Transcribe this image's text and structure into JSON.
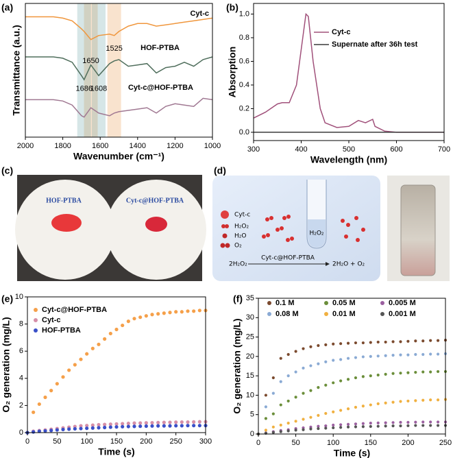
{
  "chart_data": [
    {
      "type": "line",
      "panel": "(a)",
      "xlabel": "Wavenumber (cm⁻¹)",
      "ylabel": "Transmittance (a.u.)",
      "x": [
        2000,
        1950,
        1900,
        1850,
        1800,
        1750,
        1700,
        1686,
        1650,
        1608,
        1550,
        1525,
        1500,
        1450,
        1400,
        1350,
        1300,
        1250,
        1200,
        1150,
        1100,
        1050,
        1000
      ],
      "xlim": [
        2000,
        1000
      ],
      "xticks": [
        2000,
        1800,
        1600,
        1400,
        1200,
        1000
      ],
      "ylim": [
        0,
        10
      ],
      "series": [
        {
          "name": "Cyt-c",
          "color": "#f0963c",
          "values": [
            9.0,
            9.0,
            9.0,
            9.0,
            8.9,
            8.7,
            8.1,
            7.9,
            7.3,
            7.6,
            7.7,
            7.6,
            7.9,
            8.3,
            8.5,
            8.5,
            8.3,
            8.4,
            8.5,
            8.6,
            8.7,
            8.8,
            8.9
          ]
        },
        {
          "name": "HOF-PTBA",
          "color": "#4f6e5c",
          "values": [
            6.0,
            6.0,
            6.0,
            6.0,
            5.9,
            5.6,
            4.6,
            4.3,
            5.4,
            4.6,
            5.5,
            5.7,
            5.8,
            5.3,
            5.4,
            5.5,
            4.8,
            5.2,
            5.3,
            5.6,
            5.3,
            5.8,
            6.0
          ]
        },
        {
          "name": "Cyt-c@HOF-PTBA",
          "color": "#a07892",
          "values": [
            2.8,
            2.8,
            2.8,
            2.8,
            2.7,
            2.4,
            1.6,
            1.5,
            2.2,
            1.8,
            1.6,
            1.8,
            1.9,
            2.0,
            2.1,
            2.2,
            1.8,
            2.3,
            2.5,
            2.4,
            2.3,
            2.9,
            2.8
          ]
        }
      ],
      "annotations": [
        {
          "text": "1650",
          "x": 1650,
          "y": 5.7,
          "color": "#e8903a"
        },
        {
          "text": "1525",
          "x": 1525,
          "y": 6.6,
          "color": "#e8903a"
        },
        {
          "text": "1686",
          "x": 1686,
          "y": 3.6,
          "color": "#5a9aa0"
        },
        {
          "text": "1608",
          "x": 1608,
          "y": 3.6,
          "color": "#5a9aa0"
        }
      ]
    },
    {
      "type": "line",
      "panel": "(b)",
      "xlabel": "Wavelength (nm)",
      "ylabel": "Absorption",
      "x": [
        300,
        325,
        350,
        360,
        375,
        390,
        400,
        410,
        415,
        425,
        440,
        450,
        475,
        500,
        520,
        535,
        550,
        555,
        575,
        600,
        650,
        700
      ],
      "xlim": [
        300,
        700
      ],
      "xticks": [
        300,
        400,
        500,
        600,
        700
      ],
      "ylim": [
        -0.07,
        1.09
      ],
      "yticks": [
        {
          "value": 0,
          "label": "0.0"
        },
        0.2,
        0.4,
        0.6,
        0.8,
        {
          "value": 1,
          "label": "1.0"
        }
      ],
      "series": [
        {
          "name": "Cyt-c",
          "color": "#a0507a",
          "values": [
            0.12,
            0.17,
            0.24,
            0.25,
            0.25,
            0.4,
            0.7,
            1.0,
            0.98,
            0.6,
            0.2,
            0.08,
            0.04,
            0.05,
            0.1,
            0.08,
            0.11,
            0.05,
            0.01,
            0,
            0,
            0
          ]
        },
        {
          "name": "Supernate after 36h test",
          "color": "#3a3a3a",
          "values": [
            0,
            0,
            0,
            0,
            0,
            0,
            0,
            0,
            0,
            0,
            0,
            0,
            0,
            0,
            0,
            0,
            0,
            0,
            0,
            0,
            0,
            0
          ]
        }
      ]
    },
    {
      "type": "scatter",
      "panel": "(e)",
      "xlabel": "Time (s)",
      "ylabel": "O₂ generation (mg/L)",
      "x": [
        0,
        10,
        20,
        30,
        40,
        50,
        60,
        70,
        80,
        90,
        100,
        110,
        120,
        130,
        140,
        150,
        160,
        170,
        180,
        190,
        200,
        210,
        220,
        230,
        240,
        250,
        260,
        270,
        280,
        290,
        300
      ],
      "xlim": [
        0,
        300
      ],
      "xticks": [
        0,
        50,
        100,
        150,
        200,
        250,
        300
      ],
      "ylim": [
        0,
        10
      ],
      "yticks": [
        0,
        2,
        4,
        6,
        8,
        10
      ],
      "series": [
        {
          "name": "Cyt-c@HOF-PTBA",
          "color": "#f5a04a",
          "values": [
            0,
            1.5,
            2.1,
            2.6,
            3.1,
            3.6,
            4.1,
            4.6,
            5.0,
            5.4,
            5.8,
            6.2,
            6.5,
            6.9,
            7.3,
            7.6,
            7.9,
            8.2,
            8.4,
            8.5,
            8.6,
            8.7,
            8.75,
            8.8,
            8.85,
            8.9,
            8.9,
            8.95,
            8.95,
            9.0,
            9.0
          ]
        },
        {
          "name": "Cyt-c",
          "color": "#d68fa8",
          "values": [
            0,
            0.1,
            0.15,
            0.2,
            0.25,
            0.3,
            0.35,
            0.4,
            0.45,
            0.5,
            0.52,
            0.55,
            0.58,
            0.6,
            0.62,
            0.64,
            0.66,
            0.68,
            0.7,
            0.71,
            0.72,
            0.73,
            0.74,
            0.75,
            0.76,
            0.77,
            0.78,
            0.78,
            0.79,
            0.8,
            0.8
          ]
        },
        {
          "name": "HOF-PTBA",
          "color": "#3a50c8",
          "values": [
            0,
            0.05,
            0.1,
            0.13,
            0.16,
            0.2,
            0.23,
            0.26,
            0.28,
            0.3,
            0.32,
            0.34,
            0.36,
            0.38,
            0.4,
            0.42,
            0.44,
            0.45,
            0.46,
            0.47,
            0.48,
            0.49,
            0.5,
            0.5,
            0.5,
            0.51,
            0.51,
            0.52,
            0.52,
            0.52,
            0.52
          ]
        }
      ]
    },
    {
      "type": "scatter",
      "panel": "(f)",
      "xlabel": "Time (s)",
      "ylabel": "O₂ generation (mg/L)",
      "x": [
        0,
        10,
        20,
        30,
        40,
        50,
        60,
        70,
        80,
        90,
        100,
        110,
        120,
        130,
        140,
        150,
        160,
        170,
        180,
        190,
        200,
        210,
        220,
        230,
        240,
        250
      ],
      "xlim": [
        0,
        250
      ],
      "xticks": [
        0,
        50,
        100,
        150,
        200,
        250
      ],
      "ylim": [
        0,
        35
      ],
      "yticks": [
        0,
        5,
        10,
        15,
        20,
        25,
        30,
        35
      ],
      "series": [
        {
          "name": "0.1 M",
          "color": "#7b4a2e",
          "values": [
            0,
            10,
            14.5,
            19.5,
            20.5,
            21.3,
            22,
            22.5,
            22.8,
            23,
            23.2,
            23.3,
            23.4,
            23.5,
            23.5,
            23.6,
            23.7,
            23.7,
            23.8,
            23.8,
            23.9,
            24,
            24,
            24.1,
            24.1,
            24.2
          ]
        },
        {
          "name": "0.05 M",
          "color": "#6b8e3a",
          "values": [
            0,
            4,
            5.2,
            7.5,
            8.5,
            9.5,
            10.5,
            11.2,
            12,
            12.6,
            13.2,
            13.7,
            14.1,
            14.5,
            14.8,
            15,
            15.2,
            15.4,
            15.6,
            15.7,
            15.8,
            15.9,
            16,
            16,
            16.1,
            16.1
          ]
        },
        {
          "name": "0.005 M",
          "color": "#9b5fa0",
          "values": [
            0,
            0.3,
            0.6,
            0.9,
            1.1,
            1.4,
            1.6,
            1.8,
            2.0,
            2.1,
            2.3,
            2.4,
            2.5,
            2.6,
            2.7,
            2.8,
            2.85,
            2.9,
            2.95,
            3.0,
            3.0,
            3.05,
            3.1,
            3.1,
            3.1,
            3.1
          ]
        },
        {
          "name": "0.08 M",
          "color": "#8aaad4",
          "values": [
            0,
            7,
            10.5,
            13.5,
            15,
            16,
            17,
            17.6,
            18.1,
            18.6,
            19,
            19.2,
            19.5,
            19.7,
            19.9,
            20,
            20.1,
            20.2,
            20.3,
            20.4,
            20.4,
            20.5,
            20.5,
            20.6,
            20.6,
            20.7
          ]
        },
        {
          "name": "0.01 M",
          "color": "#f0b040",
          "values": [
            0,
            1,
            1.8,
            2.3,
            2.8,
            3.3,
            3.8,
            4.3,
            4.8,
            5.3,
            5.7,
            6.1,
            6.5,
            6.9,
            7.2,
            7.5,
            7.8,
            8.0,
            8.2,
            8.4,
            8.5,
            8.6,
            8.7,
            8.8,
            8.8,
            8.9
          ]
        },
        {
          "name": "0.001 M",
          "color": "#555555",
          "values": [
            0,
            0.2,
            0.4,
            0.6,
            0.8,
            1.0,
            1.1,
            1.3,
            1.4,
            1.5,
            1.6,
            1.7,
            1.8,
            1.85,
            1.9,
            1.95,
            2.0,
            2.05,
            2.1,
            2.1,
            2.15,
            2.2,
            2.2,
            2.2,
            2.2,
            2.2
          ]
        }
      ]
    }
  ],
  "photos": {
    "panel": "(c)",
    "labels": [
      "HOF-PTBA",
      "Cyt-c@HOF-PTBA"
    ]
  },
  "diagram": {
    "panel": "(d)",
    "legend": [
      "Cyt-c",
      "H₂O₂",
      "H₂O",
      "O₂"
    ],
    "tube": "H₂O₂",
    "equation": {
      "left": "2H₂O₂",
      "catalyst": "Cyt-c@HOF-PTBA",
      "right": "2H₂O + O₂"
    }
  }
}
